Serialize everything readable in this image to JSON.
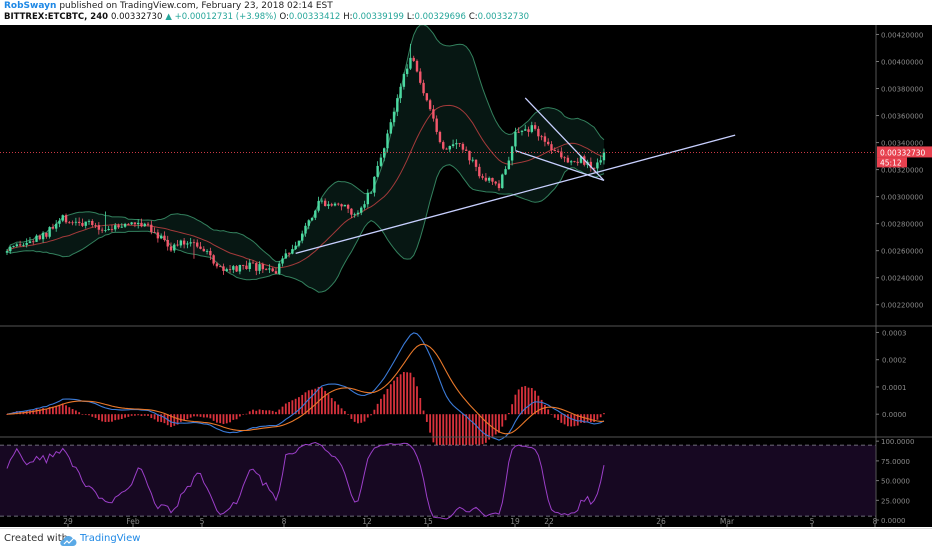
{
  "header": {
    "author": "RobSwayn",
    "published": "published on TradingView.com, February 23, 2018 02:14 EST",
    "symbol": "BITTREX:ETCBTC, 240",
    "last": "0.00332730",
    "change": "▲ +0.00012731 (+3.98%)",
    "o_label": "O:",
    "o": "0.00333412",
    "h_label": "H:",
    "h": "0.00339199",
    "l_label": "L:",
    "l": "0.00329696",
    "c_label": "C:",
    "c": "0.00332730"
  },
  "footer": {
    "created": "Created with",
    "brand": "TradingView"
  },
  "colors": {
    "background": "#000000",
    "up": "#4cd9a1",
    "down": "#f2576b",
    "bb_band": "#33805d",
    "bb_basis": "#a33a3a",
    "trendline": "#c8d0ff",
    "macd": "#3b7bd8",
    "signal": "#e8782a",
    "hist": "#d9323d",
    "rsi": "#9c3fc9",
    "rsi_zone": "#170822",
    "price_label_bg": "#e8414f"
  },
  "chart_data": [
    {
      "type": "candlestick",
      "title": "",
      "series": [
        {
          "name": "",
          "values": []
        }
      ],
      "price_scale": {
        "ticks": [
          "0.00420000",
          "0.00400000",
          "0.00380000",
          "0.00360000",
          "0.00340000",
          "0.00320000",
          "0.00300000",
          "0.00280000",
          "0.00260000",
          "0.00240000",
          "0.00220000"
        ],
        "ylim": [
          0.00205,
          0.00427
        ]
      },
      "last_price_label": "0.00332730",
      "countdown_label": "45:12",
      "x_ticks": [
        "29",
        "Feb",
        "5",
        "8",
        "12",
        "15",
        "19",
        "22",
        "26",
        "Mar",
        "5",
        "8"
      ],
      "anchors": [
        {
          "i": 0,
          "p": 0.002585
        },
        {
          "i": 12,
          "p": 0.00272
        },
        {
          "i": 17,
          "p": 0.002835
        },
        {
          "i": 30,
          "p": 0.00276
        },
        {
          "i": 42,
          "p": 0.002815
        },
        {
          "i": 50,
          "p": 0.002625
        },
        {
          "i": 57,
          "p": 0.00268
        },
        {
          "i": 66,
          "p": 0.00244
        },
        {
          "i": 74,
          "p": 0.00248
        },
        {
          "i": 82,
          "p": 0.00245
        },
        {
          "i": 87,
          "p": 0.00262
        },
        {
          "i": 95,
          "p": 0.00296
        },
        {
          "i": 100,
          "p": 0.00296
        },
        {
          "i": 106,
          "p": 0.00286
        },
        {
          "i": 111,
          "p": 0.00305
        },
        {
          "i": 117,
          "p": 0.00355
        },
        {
          "i": 123,
          "p": 0.00405
        },
        {
          "i": 127,
          "p": 0.00375
        },
        {
          "i": 133,
          "p": 0.00336
        },
        {
          "i": 137,
          "p": 0.00342
        },
        {
          "i": 144,
          "p": 0.00318
        },
        {
          "i": 150,
          "p": 0.00306
        },
        {
          "i": 155,
          "p": 0.00345
        },
        {
          "i": 160,
          "p": 0.00352
        },
        {
          "i": 166,
          "p": 0.00336
        },
        {
          "i": 170,
          "p": 0.00328
        },
        {
          "i": 175,
          "p": 0.00328
        },
        {
          "i": 179,
          "p": 0.00318
        },
        {
          "i": 182,
          "p": 0.003327
        }
      ],
      "candle_count": 183,
      "noise": 4e-05,
      "bollinger": {
        "period": 20,
        "mult": 2
      },
      "trendlines": [
        {
          "i1": 88,
          "p1": 0.00258,
          "i2": 222,
          "p2": 0.003455
        },
        {
          "i1": 155,
          "p1": 0.00334,
          "i2": 182,
          "p2": 0.00312
        },
        {
          "i1": 158,
          "p1": 0.00373,
          "i2": 182,
          "p2": 0.00312
        }
      ]
    },
    {
      "type": "line",
      "title": "",
      "series": [
        {
          "name": "",
          "values": []
        },
        {
          "name": "",
          "values": []
        }
      ],
      "ticks": [
        "0.0003",
        "0.0002",
        "0.0001",
        "0.0000"
      ],
      "ylim": [
        -8e-05,
        0.00032
      ]
    },
    {
      "type": "line",
      "title": "",
      "series": [
        {
          "name": "",
          "values": []
        }
      ],
      "ticks": [
        "100.0000",
        "75.0000",
        "50.0000",
        "25.0000",
        "0.0000"
      ],
      "ylim": [
        -5,
        104
      ],
      "bands": [
        95,
        5
      ]
    }
  ]
}
